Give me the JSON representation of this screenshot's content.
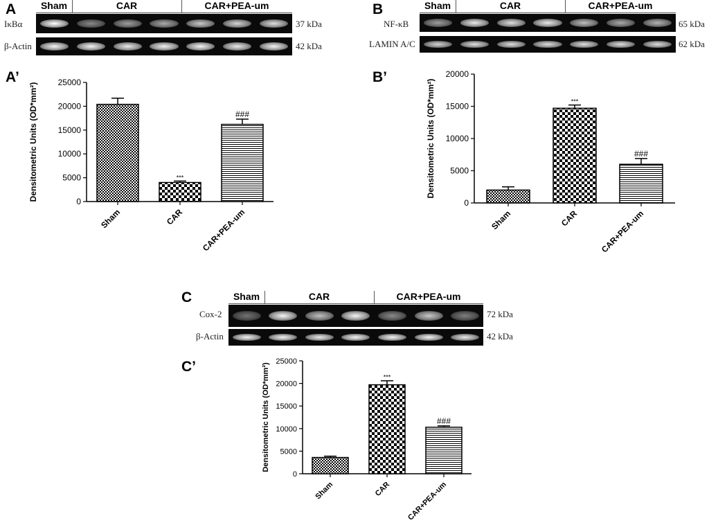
{
  "panels": {
    "A": "A",
    "B": "B",
    "C": "C",
    "A_prime": "A’",
    "B_prime": "B’",
    "C_prime": "C’"
  },
  "blots": {
    "A": {
      "groups": [
        "Sham",
        "CAR",
        "CAR+PEA-um"
      ],
      "rows": [
        {
          "label": "IκBα",
          "kda": "37 kDa",
          "intensity": [
            1.0,
            0.45,
            0.55,
            0.6,
            0.75,
            0.8,
            0.85
          ]
        },
        {
          "label": "β-Actin",
          "kda": "42 kDa",
          "intensity": [
            0.95,
            0.95,
            0.9,
            0.95,
            0.95,
            0.9,
            0.95
          ]
        }
      ]
    },
    "B": {
      "groups": [
        "Sham",
        "CAR",
        "CAR+PEA-um"
      ],
      "rows": [
        {
          "label": "NF-κB",
          "kda": "65 kDa",
          "intensity": [
            0.55,
            0.9,
            0.85,
            0.9,
            0.7,
            0.6,
            0.65
          ]
        },
        {
          "label": "LAMIN A/C",
          "kda": "62 kDa",
          "intensity": [
            0.8,
            0.85,
            0.85,
            0.85,
            0.85,
            0.85,
            0.85
          ]
        }
      ]
    },
    "C": {
      "groups": [
        "Sham",
        "CAR",
        "CAR+PEA-um"
      ],
      "rows": [
        {
          "label": "Cox-2",
          "kda": "72 kDa",
          "intensity": [
            0.35,
            0.95,
            0.7,
            0.95,
            0.45,
            0.75,
            0.4
          ]
        },
        {
          "label": "β-Actin",
          "kda": "42 kDa",
          "intensity": [
            0.95,
            0.95,
            0.9,
            0.95,
            0.95,
            0.95,
            0.9
          ]
        }
      ]
    }
  },
  "chart_data": [
    {
      "id": "A_prime",
      "type": "bar",
      "categories": [
        "Sham",
        "CAR",
        "CAR+PEA-um"
      ],
      "values": [
        20400,
        4000,
        16200
      ],
      "errors": [
        1300,
        300,
        1100
      ],
      "annotations": [
        "",
        "***",
        "###"
      ],
      "patterns": [
        "fine-check",
        "check",
        "hlines"
      ],
      "ylabel": "Densitometric Units (OD*mm²)",
      "ylim": [
        0,
        25000
      ],
      "yticks": [
        0,
        5000,
        10000,
        15000,
        20000,
        25000
      ],
      "yticklabels": [
        "0",
        "5000",
        "10000",
        "15000",
        "20000",
        "25000"
      ]
    },
    {
      "id": "B_prime",
      "type": "bar",
      "categories": [
        "Sham",
        "CAR",
        "CAR+PEA-um"
      ],
      "values": [
        2000,
        14700,
        6000
      ],
      "errors": [
        500,
        500,
        900
      ],
      "annotations": [
        "",
        "***",
        "###"
      ],
      "patterns": [
        "fine-check",
        "check",
        "hlines"
      ],
      "ylabel": "Densitometric Units (OD*mm²)",
      "ylim": [
        0,
        20000
      ],
      "yticks": [
        0,
        5000,
        10000,
        15000,
        20000
      ],
      "yticklabels": [
        "0",
        "5000",
        "10000",
        "15000",
        "20000"
      ]
    },
    {
      "id": "C_prime",
      "type": "bar",
      "categories": [
        "Sham",
        "CAR",
        "CAR+PEA-um"
      ],
      "values": [
        3600,
        19700,
        10300
      ],
      "errors": [
        300,
        900,
        300
      ],
      "annotations": [
        "",
        "***",
        "###"
      ],
      "patterns": [
        "fine-check",
        "check",
        "hlines"
      ],
      "ylabel": "Densitometric Units (OD*mm²)",
      "ylim": [
        0,
        25000
      ],
      "yticks": [
        0,
        5000,
        10000,
        15000,
        20000,
        25000
      ],
      "yticklabels": [
        "0",
        "5000",
        "10000",
        "15000",
        "20000",
        "25000"
      ]
    }
  ]
}
